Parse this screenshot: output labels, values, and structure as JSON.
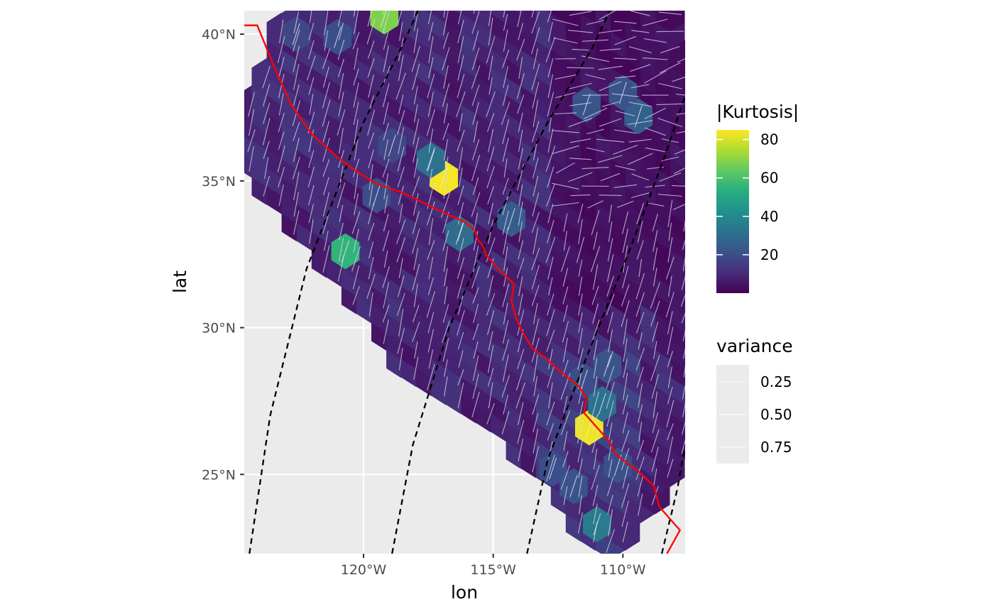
{
  "chart_data": {
    "type": "heatmap",
    "subtype": "map-with-hexagonal-cells-and-segments",
    "xlabel": "lon",
    "ylabel": "lat",
    "x_ticks": [
      {
        "value": -120,
        "label": "120°W"
      },
      {
        "value": -115,
        "label": "115°W"
      },
      {
        "value": -110,
        "label": "110°W"
      }
    ],
    "y_ticks": [
      {
        "value": 40,
        "label": "40°N"
      },
      {
        "value": 35,
        "label": "35°N"
      },
      {
        "value": 30,
        "label": "30°N"
      },
      {
        "value": 25,
        "label": "25°N"
      }
    ],
    "xlim": [
      -124.6,
      -107.6
    ],
    "ylim": [
      22.3,
      40.8
    ],
    "grid": true,
    "panel_background": "#ebebeb",
    "grid_color": "#ffffff",
    "legend_placement": "right",
    "color_legend": {
      "title": "|Kurtosis|",
      "scale": "viridis",
      "range": [
        0,
        85
      ],
      "breaks": [
        {
          "value": 80,
          "label": "80"
        },
        {
          "value": 60,
          "label": "60"
        },
        {
          "value": 40,
          "label": "40"
        },
        {
          "value": 20,
          "label": "20"
        }
      ],
      "colors": [
        "#440154",
        "#472d7b",
        "#3b528b",
        "#2c728e",
        "#21918c",
        "#28ae80",
        "#5ec962",
        "#addc30",
        "#fde725"
      ]
    },
    "size_legend": {
      "title": "variance",
      "breaks": [
        {
          "value": 0.25,
          "label": "0.25"
        },
        {
          "value": 0.5,
          "label": "0.50"
        },
        {
          "value": 0.75,
          "label": "0.75"
        }
      ]
    },
    "swath": {
      "lon_min": -124.6,
      "lon_max": -107.6,
      "lat_min": 22.3,
      "lat_max": 40.8,
      "hex_size": 0.62
    },
    "high_kurtosis_cells": [
      {
        "lon": -119.2,
        "lat": 40.6,
        "value": 68
      },
      {
        "lon": -116.9,
        "lat": 35.1,
        "value": 84
      },
      {
        "lon": -117.4,
        "lat": 35.7,
        "value": 32
      },
      {
        "lon": -120.7,
        "lat": 32.6,
        "value": 55
      },
      {
        "lon": -116.3,
        "lat": 33.2,
        "value": 30
      },
      {
        "lon": -114.3,
        "lat": 33.7,
        "value": 25
      },
      {
        "lon": -111.3,
        "lat": 26.6,
        "value": 83
      },
      {
        "lon": -110.8,
        "lat": 27.4,
        "value": 32
      },
      {
        "lon": -111.0,
        "lat": 23.3,
        "value": 35
      },
      {
        "lon": -122.6,
        "lat": 40.0,
        "value": 18
      },
      {
        "lon": -121.0,
        "lat": 39.9,
        "value": 20
      },
      {
        "lon": -109.4,
        "lat": 37.2,
        "value": 26
      },
      {
        "lon": -110.0,
        "lat": 38.0,
        "value": 22
      },
      {
        "lon": -111.4,
        "lat": 37.6,
        "value": 22
      },
      {
        "lon": -118.9,
        "lat": 36.2,
        "value": 18
      },
      {
        "lon": -119.5,
        "lat": 34.5,
        "value": 20
      },
      {
        "lon": -110.6,
        "lat": 28.7,
        "value": 22
      },
      {
        "lon": -111.5,
        "lat": 28.2,
        "value": 20
      },
      {
        "lon": -110.2,
        "lat": 25.3,
        "value": 21
      },
      {
        "lon": -112.7,
        "lat": 25.2,
        "value": 20
      },
      {
        "lon": -111.9,
        "lat": 24.6,
        "value": 22
      }
    ],
    "boundary_line": {
      "color": "#ff0000",
      "points": [
        [
          -124.6,
          40.3
        ],
        [
          -124.1,
          40.3
        ],
        [
          -123.5,
          39.0
        ],
        [
          -122.8,
          37.6
        ],
        [
          -122.0,
          36.6
        ],
        [
          -121.0,
          35.8
        ],
        [
          -120.4,
          35.4
        ],
        [
          -119.5,
          34.9
        ],
        [
          -118.5,
          34.6
        ],
        [
          -117.1,
          34.0
        ],
        [
          -116.1,
          33.6
        ],
        [
          -115.7,
          33.3
        ],
        [
          -115.6,
          33.0
        ],
        [
          -115.4,
          32.8
        ],
        [
          -115.3,
          32.5
        ],
        [
          -114.8,
          32.0
        ],
        [
          -114.2,
          31.5
        ],
        [
          -114.3,
          30.9
        ],
        [
          -114.1,
          30.3
        ],
        [
          -113.9,
          29.9
        ],
        [
          -113.5,
          29.3
        ],
        [
          -112.9,
          28.9
        ],
        [
          -112.4,
          28.5
        ],
        [
          -111.7,
          28.0
        ],
        [
          -111.4,
          27.6
        ],
        [
          -111.5,
          27.1
        ],
        [
          -111.0,
          26.6
        ],
        [
          -110.5,
          26.1
        ],
        [
          -110.3,
          25.7
        ],
        [
          -109.4,
          25.1
        ],
        [
          -108.8,
          24.6
        ],
        [
          -108.6,
          23.9
        ],
        [
          -108.1,
          23.4
        ],
        [
          -107.8,
          23.1
        ],
        [
          -108.3,
          22.3
        ]
      ]
    },
    "dashed_lines": {
      "color": "#000000",
      "lines": [
        [
          [
            -124.4,
            22.3
          ],
          [
            -123.6,
            27.0
          ],
          [
            -122.2,
            32.0
          ],
          [
            -120.0,
            37.0
          ],
          [
            -118.5,
            39.6
          ],
          [
            -117.9,
            40.8
          ]
        ],
        [
          [
            -118.9,
            22.3
          ],
          [
            -118.1,
            26.0
          ],
          [
            -116.7,
            30.0
          ],
          [
            -115.0,
            33.5
          ],
          [
            -112.9,
            37.0
          ],
          [
            -111.2,
            39.5
          ],
          [
            -110.5,
            40.8
          ]
        ],
        [
          [
            -113.7,
            22.3
          ],
          [
            -112.9,
            25.5
          ],
          [
            -111.4,
            29.0
          ],
          [
            -109.8,
            32.5
          ],
          [
            -108.4,
            35.8
          ],
          [
            -107.6,
            37.9
          ]
        ],
        [
          [
            -108.5,
            22.3
          ],
          [
            -107.9,
            24.5
          ],
          [
            -107.6,
            26.0
          ]
        ]
      ]
    }
  }
}
